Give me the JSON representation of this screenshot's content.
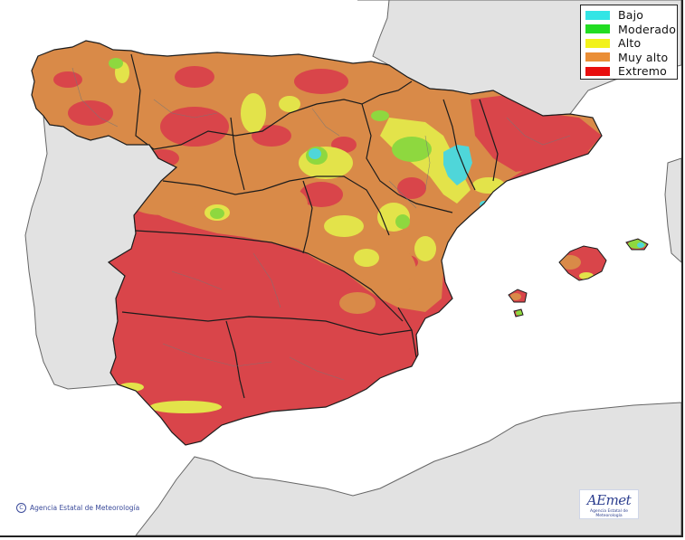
{
  "legend": {
    "title": "",
    "items": [
      {
        "label": "Bajo",
        "color": "#33e5e5"
      },
      {
        "label": "Moderado",
        "color": "#22dd22"
      },
      {
        "label": "Alto",
        "color": "#f2f21a"
      },
      {
        "label": "Muy alto",
        "color": "#ea8e36"
      },
      {
        "label": "Extremo",
        "color": "#e80e0e"
      }
    ]
  },
  "map": {
    "subject": "Iberian Peninsula and Balearic Islands",
    "risk_colors": {
      "bajo": "#4fd6d9",
      "moderado": "#8ed83f",
      "alto": "#e3e34a",
      "muy_alto": "#d98a48",
      "extremo": "#d9454a"
    },
    "land_outside_color": "#e2e2e2",
    "sea_color": "#ffffff",
    "boundary_color": "#1c1c1c"
  },
  "footer": {
    "credit_symbol": "C",
    "credit_text": "Agencia Estatal de Meteorología",
    "logo_text": "AEmet",
    "logo_subtext": "Agencia Estatal de Meteorología"
  }
}
